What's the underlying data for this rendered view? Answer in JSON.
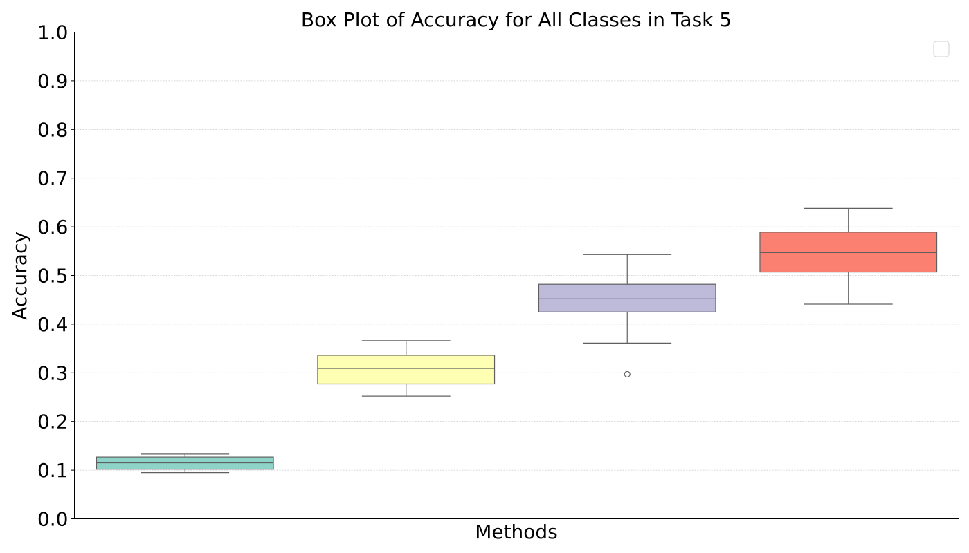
{
  "chart_data": {
    "type": "boxplot",
    "title": "Box Plot of Accuracy for All Classes in Task 5",
    "xlabel": "Methods",
    "ylabel": "Accuracy",
    "ylim": [
      0.0,
      1.0
    ],
    "yticks": [
      "0.0",
      "0.1",
      "0.2",
      "0.3",
      "0.4",
      "0.5",
      "0.6",
      "0.7",
      "0.8",
      "0.9",
      "1.0"
    ],
    "grid": "horizontal-dotted",
    "legend": "top-right (empty)",
    "boxes": [
      {
        "color": "#8dd3c7",
        "whisker_low": 0.095,
        "q1": 0.102,
        "median": 0.115,
        "q3": 0.127,
        "whisker_high": 0.133,
        "outliers": []
      },
      {
        "color": "#ffffb3",
        "whisker_low": 0.252,
        "q1": 0.277,
        "median": 0.309,
        "q3": 0.336,
        "whisker_high": 0.366,
        "outliers": []
      },
      {
        "color": "#bebada",
        "whisker_low": 0.361,
        "q1": 0.425,
        "median": 0.452,
        "q3": 0.482,
        "whisker_high": 0.543,
        "outliers": [
          0.297
        ]
      },
      {
        "color": "#fb8072",
        "whisker_low": 0.441,
        "q1": 0.507,
        "median": 0.547,
        "q3": 0.589,
        "whisker_high": 0.638,
        "outliers": []
      }
    ]
  }
}
